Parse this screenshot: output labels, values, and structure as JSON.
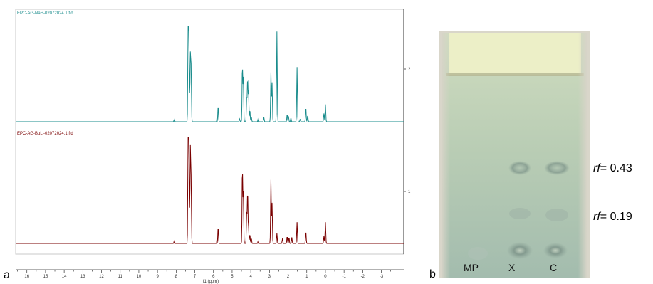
{
  "panel_labels": {
    "a": "a",
    "b": "b"
  },
  "chart_data": {
    "type": "line",
    "xlabel": "f1 (ppm)",
    "xlim": [
      16.6,
      -4.2
    ],
    "x_ticks": [
      16,
      15,
      14,
      13,
      12,
      11,
      10,
      9,
      8,
      7,
      6,
      5,
      4,
      3,
      2,
      1,
      0,
      -1,
      -2,
      -3
    ],
    "x_tick_labels": [
      "16",
      "15",
      "14",
      "13",
      "12",
      "11",
      "10",
      "9",
      "8",
      "7",
      "6",
      "5",
      "4",
      "3",
      "2",
      "1",
      "0",
      "-1",
      "-2",
      "-3"
    ],
    "y_ticks": [
      2,
      1
    ],
    "y_tick_labels": [
      "2",
      "1"
    ],
    "grid": false,
    "series": [
      {
        "name": "EPC-AG-NaH-02072024.1.fid",
        "color": "#1a8c8c",
        "peaks": [
          {
            "x": 8.1,
            "y": 0.03
          },
          {
            "x": 7.36,
            "y": 1.0
          },
          {
            "x": 7.33,
            "y": 0.78
          },
          {
            "x": 7.3,
            "y": 0.45
          },
          {
            "x": 7.24,
            "y": 0.72
          },
          {
            "x": 7.2,
            "y": 0.58
          },
          {
            "x": 5.75,
            "y": 0.17
          },
          {
            "x": 4.6,
            "y": 0.03
          },
          {
            "x": 4.45,
            "y": 0.62
          },
          {
            "x": 4.4,
            "y": 0.48
          },
          {
            "x": 4.22,
            "y": 0.26
          },
          {
            "x": 4.17,
            "y": 0.48
          },
          {
            "x": 4.12,
            "y": 0.34
          },
          {
            "x": 4.05,
            "y": 0.13
          },
          {
            "x": 3.97,
            "y": 0.05
          },
          {
            "x": 3.6,
            "y": 0.04
          },
          {
            "x": 3.3,
            "y": 0.05
          },
          {
            "x": 2.92,
            "y": 0.54
          },
          {
            "x": 2.86,
            "y": 0.43
          },
          {
            "x": 2.6,
            "y": 0.99
          },
          {
            "x": 2.05,
            "y": 0.08
          },
          {
            "x": 1.98,
            "y": 0.06
          },
          {
            "x": 1.85,
            "y": 0.04
          },
          {
            "x": 1.52,
            "y": 0.6
          },
          {
            "x": 1.35,
            "y": 0.03
          },
          {
            "x": 1.05,
            "y": 0.16
          },
          {
            "x": 0.95,
            "y": 0.07
          },
          {
            "x": 0.08,
            "y": 0.09
          },
          {
            "x": 0.0,
            "y": 0.19
          }
        ]
      },
      {
        "name": "EPC-AG-BuLi-02072024.1.fid",
        "color": "#7a0000",
        "peaks": [
          {
            "x": 8.1,
            "y": 0.03
          },
          {
            "x": 7.36,
            "y": 1.0
          },
          {
            "x": 7.33,
            "y": 0.8
          },
          {
            "x": 7.3,
            "y": 0.48
          },
          {
            "x": 7.24,
            "y": 0.92
          },
          {
            "x": 7.2,
            "y": 0.6
          },
          {
            "x": 5.75,
            "y": 0.16
          },
          {
            "x": 4.45,
            "y": 0.75
          },
          {
            "x": 4.4,
            "y": 0.5
          },
          {
            "x": 4.22,
            "y": 0.3
          },
          {
            "x": 4.17,
            "y": 0.52
          },
          {
            "x": 4.12,
            "y": 0.16
          },
          {
            "x": 4.05,
            "y": 0.09
          },
          {
            "x": 3.97,
            "y": 0.05
          },
          {
            "x": 3.6,
            "y": 0.03
          },
          {
            "x": 2.92,
            "y": 0.63
          },
          {
            "x": 2.86,
            "y": 0.4
          },
          {
            "x": 2.6,
            "y": 0.1
          },
          {
            "x": 2.3,
            "y": 0.05
          },
          {
            "x": 2.05,
            "y": 0.07
          },
          {
            "x": 1.95,
            "y": 0.06
          },
          {
            "x": 1.8,
            "y": 0.06
          },
          {
            "x": 1.52,
            "y": 0.21
          },
          {
            "x": 1.05,
            "y": 0.12
          },
          {
            "x": 0.08,
            "y": 0.07
          },
          {
            "x": 0.0,
            "y": 0.21
          }
        ]
      }
    ]
  },
  "tlc": {
    "lane_labels": [
      "MP",
      "X",
      "C"
    ],
    "rf_values": [
      {
        "prefix": "rf",
        "text": "= 0.43",
        "value": 0.43
      },
      {
        "prefix": "rf",
        "text": "= 0.19",
        "value": 0.19
      }
    ]
  }
}
